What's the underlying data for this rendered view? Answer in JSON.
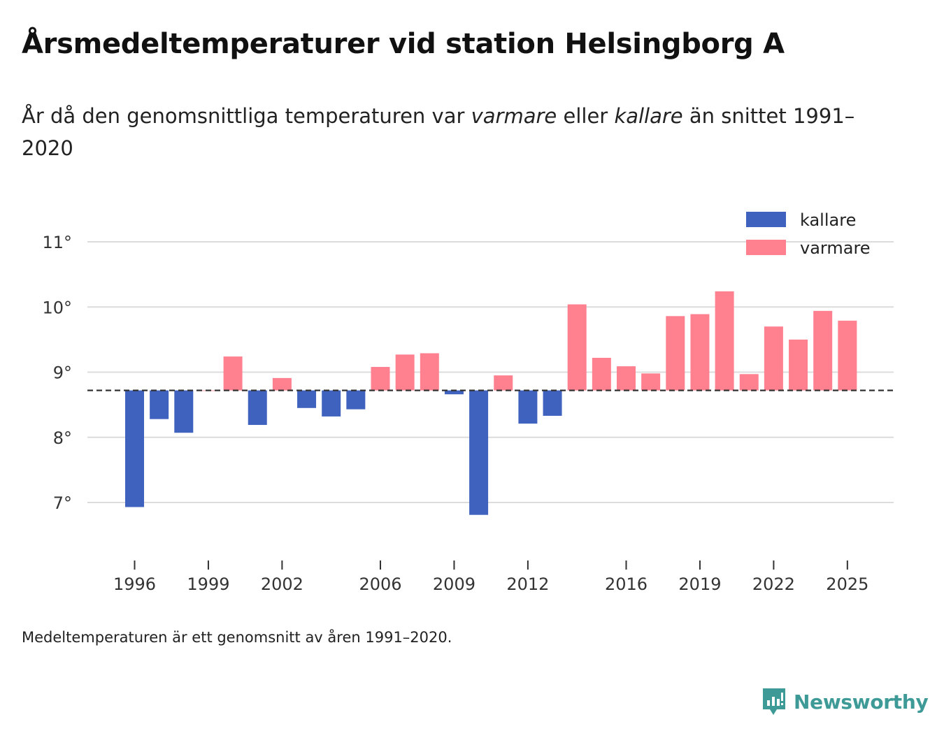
{
  "title": "Årsmedeltemperaturer vid station Helsingborg A",
  "subtitle": {
    "before": "År då den genomsnittliga temperaturen var ",
    "warm_word": "varmare",
    "middle": " eller ",
    "cold_word": "kallare",
    "after": " än snittet 1991–2020"
  },
  "footnote": "Medeltemperaturen är ett genomsnitt av åren 1991–2020.",
  "brand": {
    "name": "Newsworthy",
    "icon": "newsworthy-logo-icon"
  },
  "colors": {
    "cold": "#4062bf",
    "warm": "#ff808f",
    "grid": "#dcdcdc",
    "baseline": "#333333",
    "brand": "#3d9a96"
  },
  "chart_data": {
    "type": "bar",
    "title": "Årsmedeltemperaturer vid station Helsingborg A",
    "xlabel": "",
    "ylabel": "",
    "baseline": 8.72,
    "ylim": [
      6.5,
      11.3
    ],
    "yticks": [
      7,
      8,
      9,
      10,
      11
    ],
    "ytick_labels": [
      "7°",
      "8°",
      "9°",
      "10°",
      "11°"
    ],
    "xticks": [
      1996,
      1999,
      2002,
      2006,
      2009,
      2012,
      2016,
      2019,
      2022,
      2025
    ],
    "grid": true,
    "legend": {
      "position": "top-right",
      "entries": [
        {
          "key": "cold",
          "label": "kallare"
        },
        {
          "key": "warm",
          "label": "varmare"
        }
      ]
    },
    "categories": [
      1996,
      1997,
      1998,
      1999,
      2000,
      2001,
      2002,
      2003,
      2004,
      2005,
      2006,
      2007,
      2008,
      2009,
      2010,
      2011,
      2012,
      2013,
      2014,
      2015,
      2016,
      2017,
      2018,
      2019,
      2020,
      2021,
      2022,
      2023,
      2024,
      2025
    ],
    "values": [
      6.93,
      8.28,
      8.07,
      8.72,
      9.24,
      8.19,
      8.91,
      8.45,
      8.32,
      8.43,
      9.08,
      9.27,
      9.29,
      8.66,
      6.81,
      8.95,
      8.21,
      8.33,
      10.04,
      9.22,
      9.09,
      8.98,
      9.86,
      9.89,
      10.24,
      8.97,
      9.7,
      9.5,
      9.94,
      9.79
    ]
  }
}
